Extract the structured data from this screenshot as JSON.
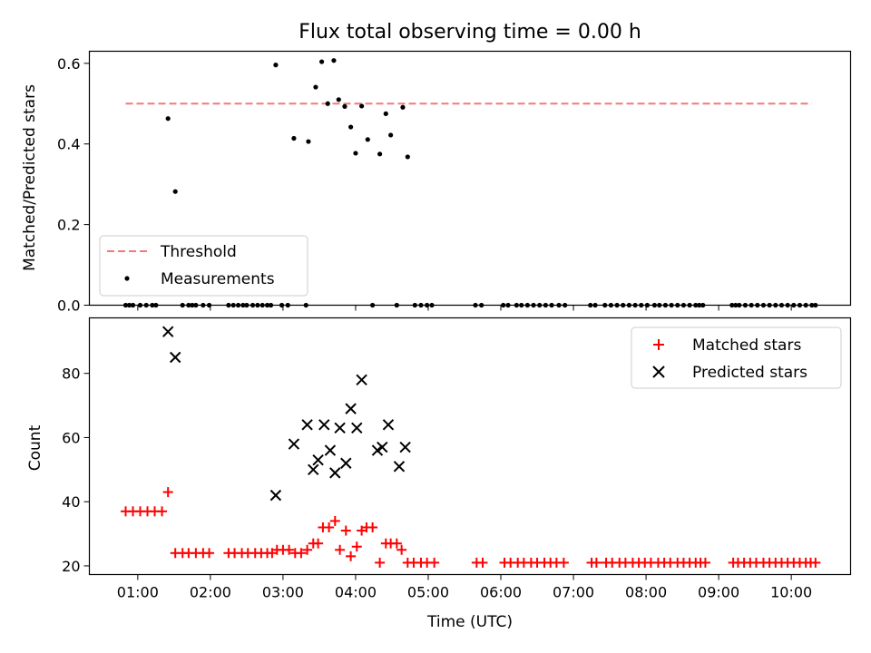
{
  "chart_data": [
    {
      "type": "scatter",
      "title": "Flux total observing time = 0.00 h",
      "xlabel": "",
      "ylabel": "Matched/Predicted stars",
      "ylim": [
        0,
        0.63
      ],
      "yticks": [
        "0.0",
        "0.2",
        "0.4",
        "0.6"
      ],
      "legend": {
        "placement": "lower-left",
        "entries": [
          "Threshold",
          "Measurements"
        ]
      },
      "threshold": {
        "name": "Threshold",
        "value": 0.5,
        "x_start": "00:50",
        "x_end": "10:17",
        "color": "#f27a7a"
      },
      "series": [
        {
          "name": "Measurements",
          "color": "#000000",
          "points": [
            [
              "00:50",
              0
            ],
            [
              "00:53",
              0
            ],
            [
              "00:56",
              0
            ],
            [
              "01:02",
              0
            ],
            [
              "01:07",
              0
            ],
            [
              "01:12",
              0
            ],
            [
              "01:15",
              0
            ],
            [
              "01:25",
              0.463
            ],
            [
              "01:31",
              0.282
            ],
            [
              "01:37",
              0
            ],
            [
              "01:42",
              0
            ],
            [
              "01:45",
              0
            ],
            [
              "01:48",
              0
            ],
            [
              "01:54",
              0
            ],
            [
              "01:59",
              0
            ],
            [
              "02:15",
              0
            ],
            [
              "02:19",
              0
            ],
            [
              "02:23",
              0
            ],
            [
              "02:27",
              0
            ],
            [
              "02:30",
              0
            ],
            [
              "02:35",
              0
            ],
            [
              "02:39",
              0
            ],
            [
              "02:43",
              0
            ],
            [
              "02:47",
              0
            ],
            [
              "02:50",
              0
            ],
            [
              "02:54",
              0.596
            ],
            [
              "02:59",
              0
            ],
            [
              "03:04",
              0
            ],
            [
              "03:09",
              0.414
            ],
            [
              "03:19",
              0
            ],
            [
              "03:21",
              0.406
            ],
            [
              "03:27",
              0.541
            ],
            [
              "03:32",
              0.604
            ],
            [
              "03:37",
              0.5
            ],
            [
              "03:42",
              0.607
            ],
            [
              "03:46",
              0.51
            ],
            [
              "03:51",
              0.493
            ],
            [
              "03:56",
              0.442
            ],
            [
              "04:00",
              0.377
            ],
            [
              "04:05",
              0.494
            ],
            [
              "04:10",
              0.411
            ],
            [
              "04:14",
              0
            ],
            [
              "04:20",
              0.375
            ],
            [
              "04:25",
              0.475
            ],
            [
              "04:29",
              0.422
            ],
            [
              "04:34",
              0
            ],
            [
              "04:39",
              0.491
            ],
            [
              "04:43",
              0.368
            ],
            [
              "04:49",
              0
            ],
            [
              "04:54",
              0
            ],
            [
              "04:59",
              0
            ],
            [
              "05:03",
              0
            ],
            [
              "05:39",
              0
            ],
            [
              "05:44",
              0
            ],
            [
              "06:02",
              0
            ],
            [
              "06:06",
              0
            ],
            [
              "06:13",
              0
            ],
            [
              "06:17",
              0
            ],
            [
              "06:22",
              0
            ],
            [
              "06:27",
              0
            ],
            [
              "06:32",
              0
            ],
            [
              "06:37",
              0
            ],
            [
              "06:42",
              0
            ],
            [
              "06:48",
              0
            ],
            [
              "06:53",
              0
            ],
            [
              "07:14",
              0
            ],
            [
              "07:18",
              0
            ],
            [
              "07:26",
              0
            ],
            [
              "07:31",
              0
            ],
            [
              "07:36",
              0
            ],
            [
              "07:41",
              0
            ],
            [
              "07:46",
              0
            ],
            [
              "07:51",
              0
            ],
            [
              "07:56",
              0
            ],
            [
              "08:01",
              0
            ],
            [
              "08:07",
              0
            ],
            [
              "08:11",
              0
            ],
            [
              "08:16",
              0
            ],
            [
              "08:21",
              0
            ],
            [
              "08:26",
              0
            ],
            [
              "08:31",
              0
            ],
            [
              "08:36",
              0
            ],
            [
              "08:41",
              0
            ],
            [
              "08:44",
              0
            ],
            [
              "08:47",
              0
            ],
            [
              "09:11",
              0
            ],
            [
              "09:14",
              0
            ],
            [
              "09:17",
              0
            ],
            [
              "09:22",
              0
            ],
            [
              "09:27",
              0
            ],
            [
              "09:32",
              0
            ],
            [
              "09:37",
              0
            ],
            [
              "09:42",
              0
            ],
            [
              "09:47",
              0
            ],
            [
              "09:52",
              0
            ],
            [
              "09:57",
              0
            ],
            [
              "10:02",
              0
            ],
            [
              "10:07",
              0
            ],
            [
              "10:12",
              0
            ],
            [
              "10:17",
              0
            ],
            [
              "10:20",
              0
            ]
          ]
        }
      ]
    },
    {
      "type": "scatter",
      "title": "",
      "xlabel": "Time (UTC)",
      "ylabel": "Count",
      "xlim": [
        "00:20",
        "10:49"
      ],
      "xticks": [
        "01:00",
        "02:00",
        "03:00",
        "04:00",
        "05:00",
        "06:00",
        "07:00",
        "08:00",
        "09:00",
        "10:00"
      ],
      "ylim": [
        17.3,
        97.3
      ],
      "yticks": [
        "20",
        "40",
        "60",
        "80"
      ],
      "legend": {
        "placement": "top-right",
        "entries": [
          "Matched stars",
          "Predicted stars"
        ]
      },
      "series": [
        {
          "name": "Matched stars",
          "color": "#ff0000",
          "points": [
            [
              "00:50",
              37
            ],
            [
              "00:56",
              37
            ],
            [
              "01:02",
              37
            ],
            [
              "01:08",
              37
            ],
            [
              "01:14",
              37
            ],
            [
              "01:20",
              37
            ],
            [
              "01:25",
              43
            ],
            [
              "01:31",
              24
            ],
            [
              "01:37",
              24
            ],
            [
              "01:42",
              24
            ],
            [
              "01:48",
              24
            ],
            [
              "01:54",
              24
            ],
            [
              "01:59",
              24
            ],
            [
              "02:15",
              24
            ],
            [
              "02:20",
              24
            ],
            [
              "02:26",
              24
            ],
            [
              "02:31",
              24
            ],
            [
              "02:37",
              24
            ],
            [
              "02:42",
              24
            ],
            [
              "02:47",
              24
            ],
            [
              "02:51",
              24
            ],
            [
              "02:55",
              25
            ],
            [
              "03:00",
              25
            ],
            [
              "03:05",
              25
            ],
            [
              "03:10",
              24
            ],
            [
              "03:15",
              24
            ],
            [
              "03:20",
              25
            ],
            [
              "03:25",
              27
            ],
            [
              "03:29",
              27
            ],
            [
              "03:33",
              32
            ],
            [
              "03:38",
              32
            ],
            [
              "03:43",
              34
            ],
            [
              "03:47",
              25
            ],
            [
              "03:52",
              31
            ],
            [
              "03:56",
              23
            ],
            [
              "04:01",
              26
            ],
            [
              "04:05",
              31
            ],
            [
              "04:09",
              32
            ],
            [
              "04:14",
              32
            ],
            [
              "04:20",
              21
            ],
            [
              "04:25",
              27
            ],
            [
              "04:29",
              27
            ],
            [
              "04:34",
              27
            ],
            [
              "04:38",
              25
            ],
            [
              "04:43",
              21
            ],
            [
              "04:48",
              21
            ],
            [
              "04:54",
              21
            ],
            [
              "04:59",
              21
            ],
            [
              "05:05",
              21
            ],
            [
              "05:40",
              21
            ],
            [
              "05:45",
              21
            ],
            [
              "06:03",
              21
            ],
            [
              "06:08",
              21
            ],
            [
              "06:14",
              21
            ],
            [
              "06:19",
              21
            ],
            [
              "06:25",
              21
            ],
            [
              "06:30",
              21
            ],
            [
              "06:36",
              21
            ],
            [
              "06:41",
              21
            ],
            [
              "06:46",
              21
            ],
            [
              "06:52",
              21
            ],
            [
              "07:15",
              21
            ],
            [
              "07:19",
              21
            ],
            [
              "07:27",
              21
            ],
            [
              "07:32",
              21
            ],
            [
              "07:38",
              21
            ],
            [
              "07:43",
              21
            ],
            [
              "07:49",
              21
            ],
            [
              "07:54",
              21
            ],
            [
              "07:59",
              21
            ],
            [
              "08:04",
              21
            ],
            [
              "08:10",
              21
            ],
            [
              "08:15",
              21
            ],
            [
              "08:20",
              21
            ],
            [
              "08:26",
              21
            ],
            [
              "08:31",
              21
            ],
            [
              "08:36",
              21
            ],
            [
              "08:41",
              21
            ],
            [
              "08:45",
              21
            ],
            [
              "08:49",
              21
            ],
            [
              "09:12",
              21
            ],
            [
              "09:16",
              21
            ],
            [
              "09:21",
              21
            ],
            [
              "09:26",
              21
            ],
            [
              "09:31",
              21
            ],
            [
              "09:37",
              21
            ],
            [
              "09:42",
              21
            ],
            [
              "09:47",
              21
            ],
            [
              "09:52",
              21
            ],
            [
              "09:57",
              21
            ],
            [
              "10:02",
              21
            ],
            [
              "10:07",
              21
            ],
            [
              "10:12",
              21
            ],
            [
              "10:16",
              21
            ],
            [
              "10:20",
              21
            ]
          ]
        },
        {
          "name": "Predicted stars",
          "color": "#000000",
          "points": [
            [
              "01:25",
              93
            ],
            [
              "01:31",
              85
            ],
            [
              "02:54",
              42
            ],
            [
              "03:09",
              58
            ],
            [
              "03:20",
              64
            ],
            [
              "03:25",
              50
            ],
            [
              "03:29",
              53
            ],
            [
              "03:34",
              64
            ],
            [
              "03:39",
              56
            ],
            [
              "03:43",
              49
            ],
            [
              "03:47",
              63
            ],
            [
              "03:52",
              52
            ],
            [
              "03:56",
              69
            ],
            [
              "04:01",
              63
            ],
            [
              "04:05",
              78
            ],
            [
              "04:18",
              56
            ],
            [
              "04:22",
              57
            ],
            [
              "04:27",
              64
            ],
            [
              "04:36",
              51
            ],
            [
              "04:41",
              57
            ]
          ]
        }
      ]
    }
  ]
}
